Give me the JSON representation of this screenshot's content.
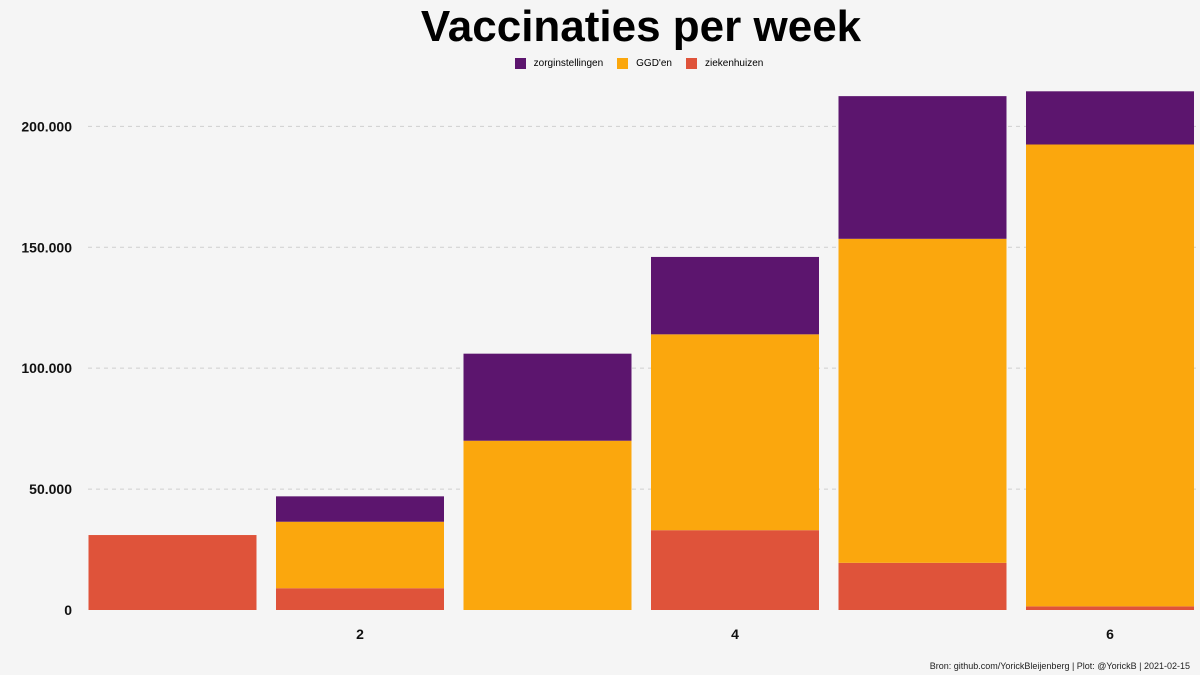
{
  "chart_data": {
    "type": "bar",
    "stacked": true,
    "title": "Vaccinaties per week",
    "xlabel": "",
    "ylabel": "",
    "x": [
      1,
      2,
      3,
      4,
      5,
      6
    ],
    "x_tick_labels": [
      {
        "x": 2,
        "label": "2"
      },
      {
        "x": 4,
        "label": "4"
      },
      {
        "x": 6,
        "label": "6"
      }
    ],
    "ylim": [
      0,
      220000
    ],
    "y_ticks": [
      0,
      50000,
      100000,
      150000,
      200000
    ],
    "y_tick_labels": [
      "0",
      "50.000",
      "100.000",
      "150.000",
      "200.000"
    ],
    "grid": "horizontal-dashed",
    "legend_position": "top",
    "stack_order": [
      "ziekenhuizen",
      "GGD'en",
      "zorginstellingen"
    ],
    "series": [
      {
        "name": "zorginstellingen",
        "color": "#5c156e",
        "values": [
          0,
          10500,
          36000,
          32000,
          59000,
          22000
        ]
      },
      {
        "name": "GGD'en",
        "color": "#fba70d",
        "values": [
          0,
          27500,
          70000,
          81000,
          134000,
          191000
        ]
      },
      {
        "name": "ziekenhuizen",
        "color": "#df533a",
        "values": [
          31000,
          9000,
          0,
          33000,
          19500,
          1500
        ]
      }
    ]
  },
  "caption": "Bron: github.com/YorickBleijenberg | Plot: @YorickB  |  2021-02-15"
}
